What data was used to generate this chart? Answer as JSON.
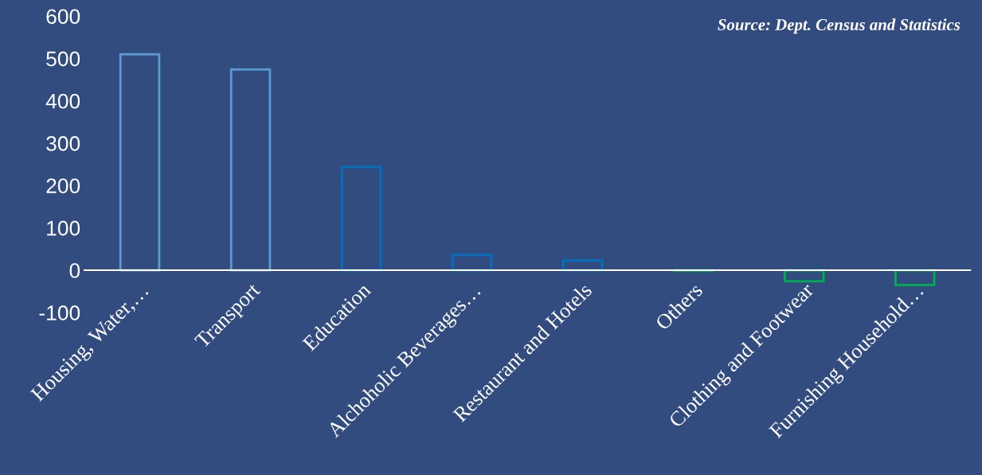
{
  "chart_data": {
    "type": "bar",
    "categories": [
      "Housing, Water,…",
      "Transport",
      "Education",
      "Alchoholic Beverages…",
      "Restaurant and Hotels",
      "Others",
      "Clothing and Footwear",
      "Furnishing Household…"
    ],
    "values": [
      510,
      474,
      244,
      36,
      23,
      -1,
      -26,
      -35
    ],
    "colors": [
      "#5b9bd5",
      "#5b9bd5",
      "#0070c0",
      "#0070c0",
      "#0070c0",
      "#00b050",
      "#00b050",
      "#00b050"
    ],
    "ylim": [
      -100,
      600
    ],
    "yticks": [
      -100,
      0,
      100,
      200,
      300,
      400,
      500,
      600
    ],
    "grid": false,
    "legend": false,
    "annotations": [
      "Source: Dept. Census and Statistics"
    ]
  }
}
